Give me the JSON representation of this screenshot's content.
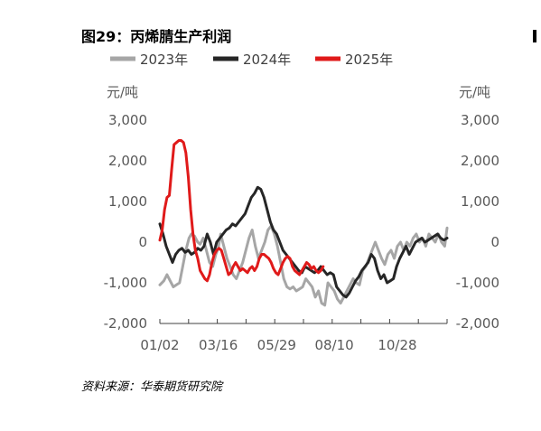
{
  "title": "图29：丙烯腈生产利润",
  "source": "资料来源：华泰期货研究院",
  "chart_data": {
    "type": "line",
    "y_unit_left": "元/吨",
    "y_unit_right": "元/吨",
    "ylim": [
      -2000,
      3000
    ],
    "yticks": [
      3000,
      2000,
      1000,
      0,
      -1000,
      -2000
    ],
    "ytick_labels": [
      "3,000",
      "2,000",
      "1,000",
      "0",
      "-1,000",
      "-2,000"
    ],
    "xlim": [
      1,
      365
    ],
    "xticks": [
      1,
      75,
      149,
      222,
      302
    ],
    "xtick_labels": [
      "01/02",
      "03/16",
      "05/29",
      "08/10",
      "10/28"
    ],
    "grid": false,
    "legend_position": "top",
    "series": [
      {
        "name": "2023年",
        "color": "#A6A6A6",
        "points": [
          [
            1,
            -1050
          ],
          [
            6,
            -950
          ],
          [
            10,
            -800
          ],
          [
            14,
            -950
          ],
          [
            18,
            -1100
          ],
          [
            22,
            -1050
          ],
          [
            26,
            -1000
          ],
          [
            30,
            -600
          ],
          [
            34,
            -200
          ],
          [
            38,
            100
          ],
          [
            41,
            200
          ],
          [
            45,
            150
          ],
          [
            49,
            0
          ],
          [
            52,
            -50
          ],
          [
            56,
            100
          ],
          [
            60,
            -200
          ],
          [
            64,
            -500
          ],
          [
            68,
            -600
          ],
          [
            72,
            -300
          ],
          [
            75,
            -150
          ],
          [
            78,
            200
          ],
          [
            82,
            -100
          ],
          [
            86,
            -400
          ],
          [
            90,
            -600
          ],
          [
            94,
            -800
          ],
          [
            98,
            -900
          ],
          [
            102,
            -700
          ],
          [
            106,
            -500
          ],
          [
            110,
            -200
          ],
          [
            114,
            100
          ],
          [
            118,
            300
          ],
          [
            122,
            -100
          ],
          [
            126,
            -400
          ],
          [
            130,
            -200
          ],
          [
            134,
            0
          ],
          [
            138,
            300
          ],
          [
            142,
            400
          ],
          [
            146,
            200
          ],
          [
            150,
            -100
          ],
          [
            154,
            -500
          ],
          [
            158,
            -900
          ],
          [
            162,
            -1100
          ],
          [
            166,
            -1150
          ],
          [
            170,
            -1100
          ],
          [
            174,
            -1200
          ],
          [
            178,
            -1150
          ],
          [
            182,
            -1100
          ],
          [
            186,
            -900
          ],
          [
            190,
            -1000
          ],
          [
            194,
            -1100
          ],
          [
            198,
            -1350
          ],
          [
            202,
            -1200
          ],
          [
            206,
            -1500
          ],
          [
            210,
            -1550
          ],
          [
            214,
            -1000
          ],
          [
            218,
            -1100
          ],
          [
            222,
            -1200
          ],
          [
            226,
            -1400
          ],
          [
            230,
            -1500
          ],
          [
            234,
            -1350
          ],
          [
            238,
            -1200
          ],
          [
            242,
            -1050
          ],
          [
            246,
            -900
          ],
          [
            250,
            -1000
          ],
          [
            254,
            -1050
          ],
          [
            258,
            -700
          ],
          [
            262,
            -600
          ],
          [
            266,
            -400
          ],
          [
            270,
            -200
          ],
          [
            274,
            0
          ],
          [
            278,
            -200
          ],
          [
            282,
            -400
          ],
          [
            286,
            -550
          ],
          [
            290,
            -300
          ],
          [
            294,
            -200
          ],
          [
            298,
            -400
          ],
          [
            302,
            -100
          ],
          [
            306,
            0
          ],
          [
            310,
            -200
          ],
          [
            314,
            0
          ],
          [
            318,
            -100
          ],
          [
            322,
            100
          ],
          [
            326,
            200
          ],
          [
            330,
            0
          ],
          [
            334,
            100
          ],
          [
            338,
            -100
          ],
          [
            342,
            200
          ],
          [
            346,
            100
          ],
          [
            350,
            0
          ],
          [
            354,
            200
          ],
          [
            358,
            0
          ],
          [
            362,
            -100
          ],
          [
            365,
            350
          ]
        ]
      },
      {
        "name": "2024年",
        "color": "#262626",
        "points": [
          [
            1,
            450
          ],
          [
            5,
            200
          ],
          [
            9,
            -100
          ],
          [
            13,
            -300
          ],
          [
            17,
            -500
          ],
          [
            21,
            -300
          ],
          [
            25,
            -200
          ],
          [
            29,
            -150
          ],
          [
            33,
            -250
          ],
          [
            37,
            -200
          ],
          [
            41,
            -300
          ],
          [
            45,
            -250
          ],
          [
            49,
            -150
          ],
          [
            53,
            -200
          ],
          [
            57,
            -100
          ],
          [
            61,
            200
          ],
          [
            65,
            0
          ],
          [
            69,
            -300
          ],
          [
            73,
            0
          ],
          [
            77,
            100
          ],
          [
            81,
            200
          ],
          [
            85,
            300
          ],
          [
            89,
            350
          ],
          [
            93,
            450
          ],
          [
            97,
            400
          ],
          [
            101,
            500
          ],
          [
            105,
            600
          ],
          [
            109,
            700
          ],
          [
            113,
            900
          ],
          [
            117,
            1100
          ],
          [
            121,
            1200
          ],
          [
            125,
            1350
          ],
          [
            129,
            1300
          ],
          [
            133,
            1100
          ],
          [
            137,
            800
          ],
          [
            141,
            500
          ],
          [
            145,
            300
          ],
          [
            149,
            200
          ],
          [
            153,
            0
          ],
          [
            157,
            -200
          ],
          [
            161,
            -300
          ],
          [
            165,
            -400
          ],
          [
            169,
            -500
          ],
          [
            173,
            -600
          ],
          [
            177,
            -700
          ],
          [
            181,
            -750
          ],
          [
            185,
            -600
          ],
          [
            189,
            -650
          ],
          [
            193,
            -700
          ],
          [
            197,
            -750
          ],
          [
            201,
            -700
          ],
          [
            205,
            -600
          ],
          [
            209,
            -700
          ],
          [
            213,
            -800
          ],
          [
            217,
            -750
          ],
          [
            221,
            -800
          ],
          [
            225,
            -1100
          ],
          [
            229,
            -1200
          ],
          [
            233,
            -1300
          ],
          [
            237,
            -1350
          ],
          [
            241,
            -1250
          ],
          [
            245,
            -1100
          ],
          [
            249,
            -950
          ],
          [
            253,
            -850
          ],
          [
            257,
            -700
          ],
          [
            261,
            -600
          ],
          [
            265,
            -500
          ],
          [
            269,
            -300
          ],
          [
            273,
            -400
          ],
          [
            277,
            -700
          ],
          [
            281,
            -900
          ],
          [
            285,
            -800
          ],
          [
            289,
            -1000
          ],
          [
            293,
            -950
          ],
          [
            297,
            -900
          ],
          [
            301,
            -600
          ],
          [
            305,
            -400
          ],
          [
            309,
            -250
          ],
          [
            313,
            -100
          ],
          [
            317,
            -300
          ],
          [
            321,
            -150
          ],
          [
            325,
            0
          ],
          [
            329,
            50
          ],
          [
            333,
            100
          ],
          [
            337,
            0
          ],
          [
            341,
            50
          ],
          [
            345,
            100
          ],
          [
            349,
            150
          ],
          [
            353,
            200
          ],
          [
            357,
            100
          ],
          [
            361,
            50
          ],
          [
            365,
            100
          ]
        ]
      },
      {
        "name": "2025年",
        "color": "#E01A1A",
        "points": [
          [
            1,
            50
          ],
          [
            4,
            300
          ],
          [
            7,
            800
          ],
          [
            10,
            1100
          ],
          [
            13,
            1150
          ],
          [
            16,
            1800
          ],
          [
            19,
            2400
          ],
          [
            22,
            2450
          ],
          [
            25,
            2500
          ],
          [
            28,
            2500
          ],
          [
            31,
            2450
          ],
          [
            34,
            2200
          ],
          [
            37,
            1600
          ],
          [
            40,
            800
          ],
          [
            43,
            200
          ],
          [
            46,
            -200
          ],
          [
            49,
            -400
          ],
          [
            52,
            -700
          ],
          [
            55,
            -800
          ],
          [
            58,
            -900
          ],
          [
            61,
            -950
          ],
          [
            64,
            -800
          ],
          [
            67,
            -500
          ],
          [
            70,
            -300
          ],
          [
            73,
            -200
          ],
          [
            76,
            -150
          ],
          [
            79,
            -200
          ],
          [
            82,
            -400
          ],
          [
            85,
            -600
          ],
          [
            88,
            -800
          ],
          [
            91,
            -750
          ],
          [
            94,
            -600
          ],
          [
            97,
            -500
          ],
          [
            100,
            -600
          ],
          [
            103,
            -700
          ],
          [
            106,
            -650
          ],
          [
            109,
            -700
          ],
          [
            112,
            -750
          ],
          [
            115,
            -650
          ],
          [
            118,
            -600
          ],
          [
            121,
            -700
          ],
          [
            124,
            -600
          ],
          [
            127,
            -400
          ],
          [
            130,
            -300
          ],
          [
            133,
            -300
          ],
          [
            136,
            -350
          ],
          [
            139,
            -400
          ],
          [
            142,
            -500
          ],
          [
            145,
            -650
          ],
          [
            148,
            -750
          ],
          [
            151,
            -800
          ],
          [
            154,
            -650
          ],
          [
            157,
            -500
          ],
          [
            160,
            -400
          ],
          [
            163,
            -350
          ],
          [
            166,
            -400
          ],
          [
            169,
            -600
          ],
          [
            172,
            -700
          ],
          [
            175,
            -750
          ],
          [
            178,
            -800
          ],
          [
            181,
            -700
          ],
          [
            184,
            -600
          ],
          [
            187,
            -500
          ],
          [
            190,
            -550
          ],
          [
            193,
            -650
          ],
          [
            196,
            -600
          ],
          [
            199,
            -700
          ],
          [
            202,
            -750
          ],
          [
            205,
            -700
          ],
          [
            208,
            -600
          ]
        ]
      }
    ]
  }
}
